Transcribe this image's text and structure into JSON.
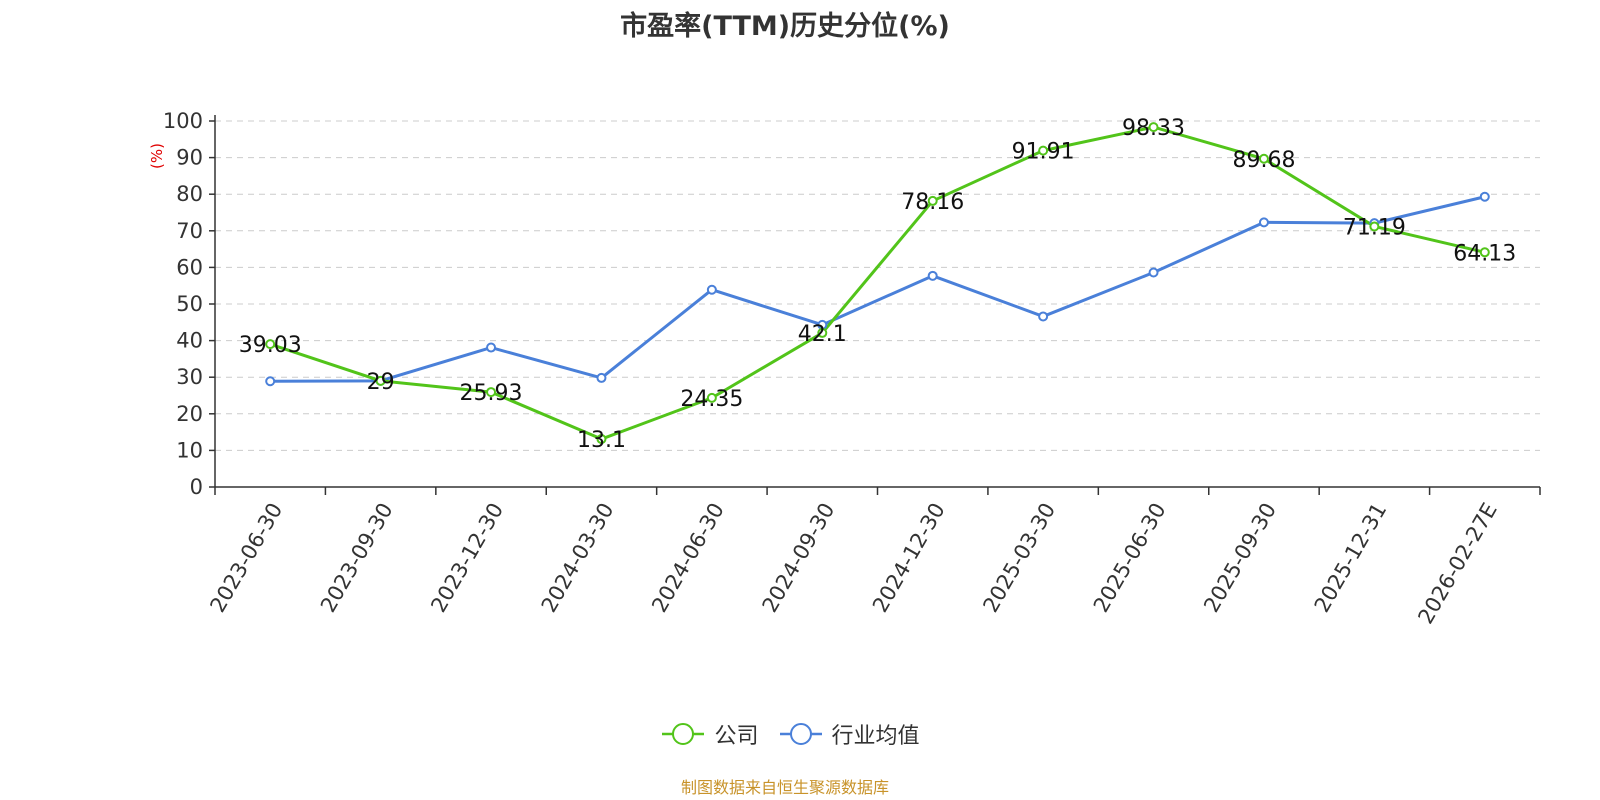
{
  "chart_data": {
    "type": "line",
    "title": "市盈率(TTM)历史分位(%)",
    "ylabel": "(%)",
    "xlabel": "",
    "ylim": [
      0,
      100
    ],
    "yticks": [
      0,
      10,
      20,
      30,
      40,
      50,
      60,
      70,
      80,
      90,
      100
    ],
    "grid": true,
    "legend_position": "bottom",
    "categories": [
      "2023-06-30",
      "2023-09-30",
      "2023-12-30",
      "2024-03-30",
      "2024-06-30",
      "2024-09-30",
      "2024-12-30",
      "2025-03-30",
      "2025-06-30",
      "2025-09-30",
      "2025-12-31",
      "2026-02-27E"
    ],
    "series": [
      {
        "name": "公司",
        "color": "#52c41a",
        "values": [
          39.03,
          29,
          25.93,
          13.1,
          24.35,
          42.1,
          78.16,
          91.91,
          98.33,
          89.68,
          71.19,
          64.13
        ],
        "data_labels": [
          "39.03",
          "29",
          "25.93",
          "13.1",
          "24.35",
          "42.1",
          "78.16",
          "91.91",
          "98.33",
          "89.68",
          "71.19",
          "64.13"
        ]
      },
      {
        "name": "行业均值",
        "color": "#4a80d9",
        "values": [
          28.9,
          29.0,
          38.1,
          29.8,
          53.9,
          44.3,
          57.7,
          46.6,
          58.6,
          72.3,
          72.1,
          79.3
        ]
      }
    ]
  },
  "source_note": "制图数据来自恒生聚源数据库",
  "colors": {
    "axis_label_red": "#e00000",
    "source_note": "#c8932a",
    "grid": "#cccccc"
  }
}
